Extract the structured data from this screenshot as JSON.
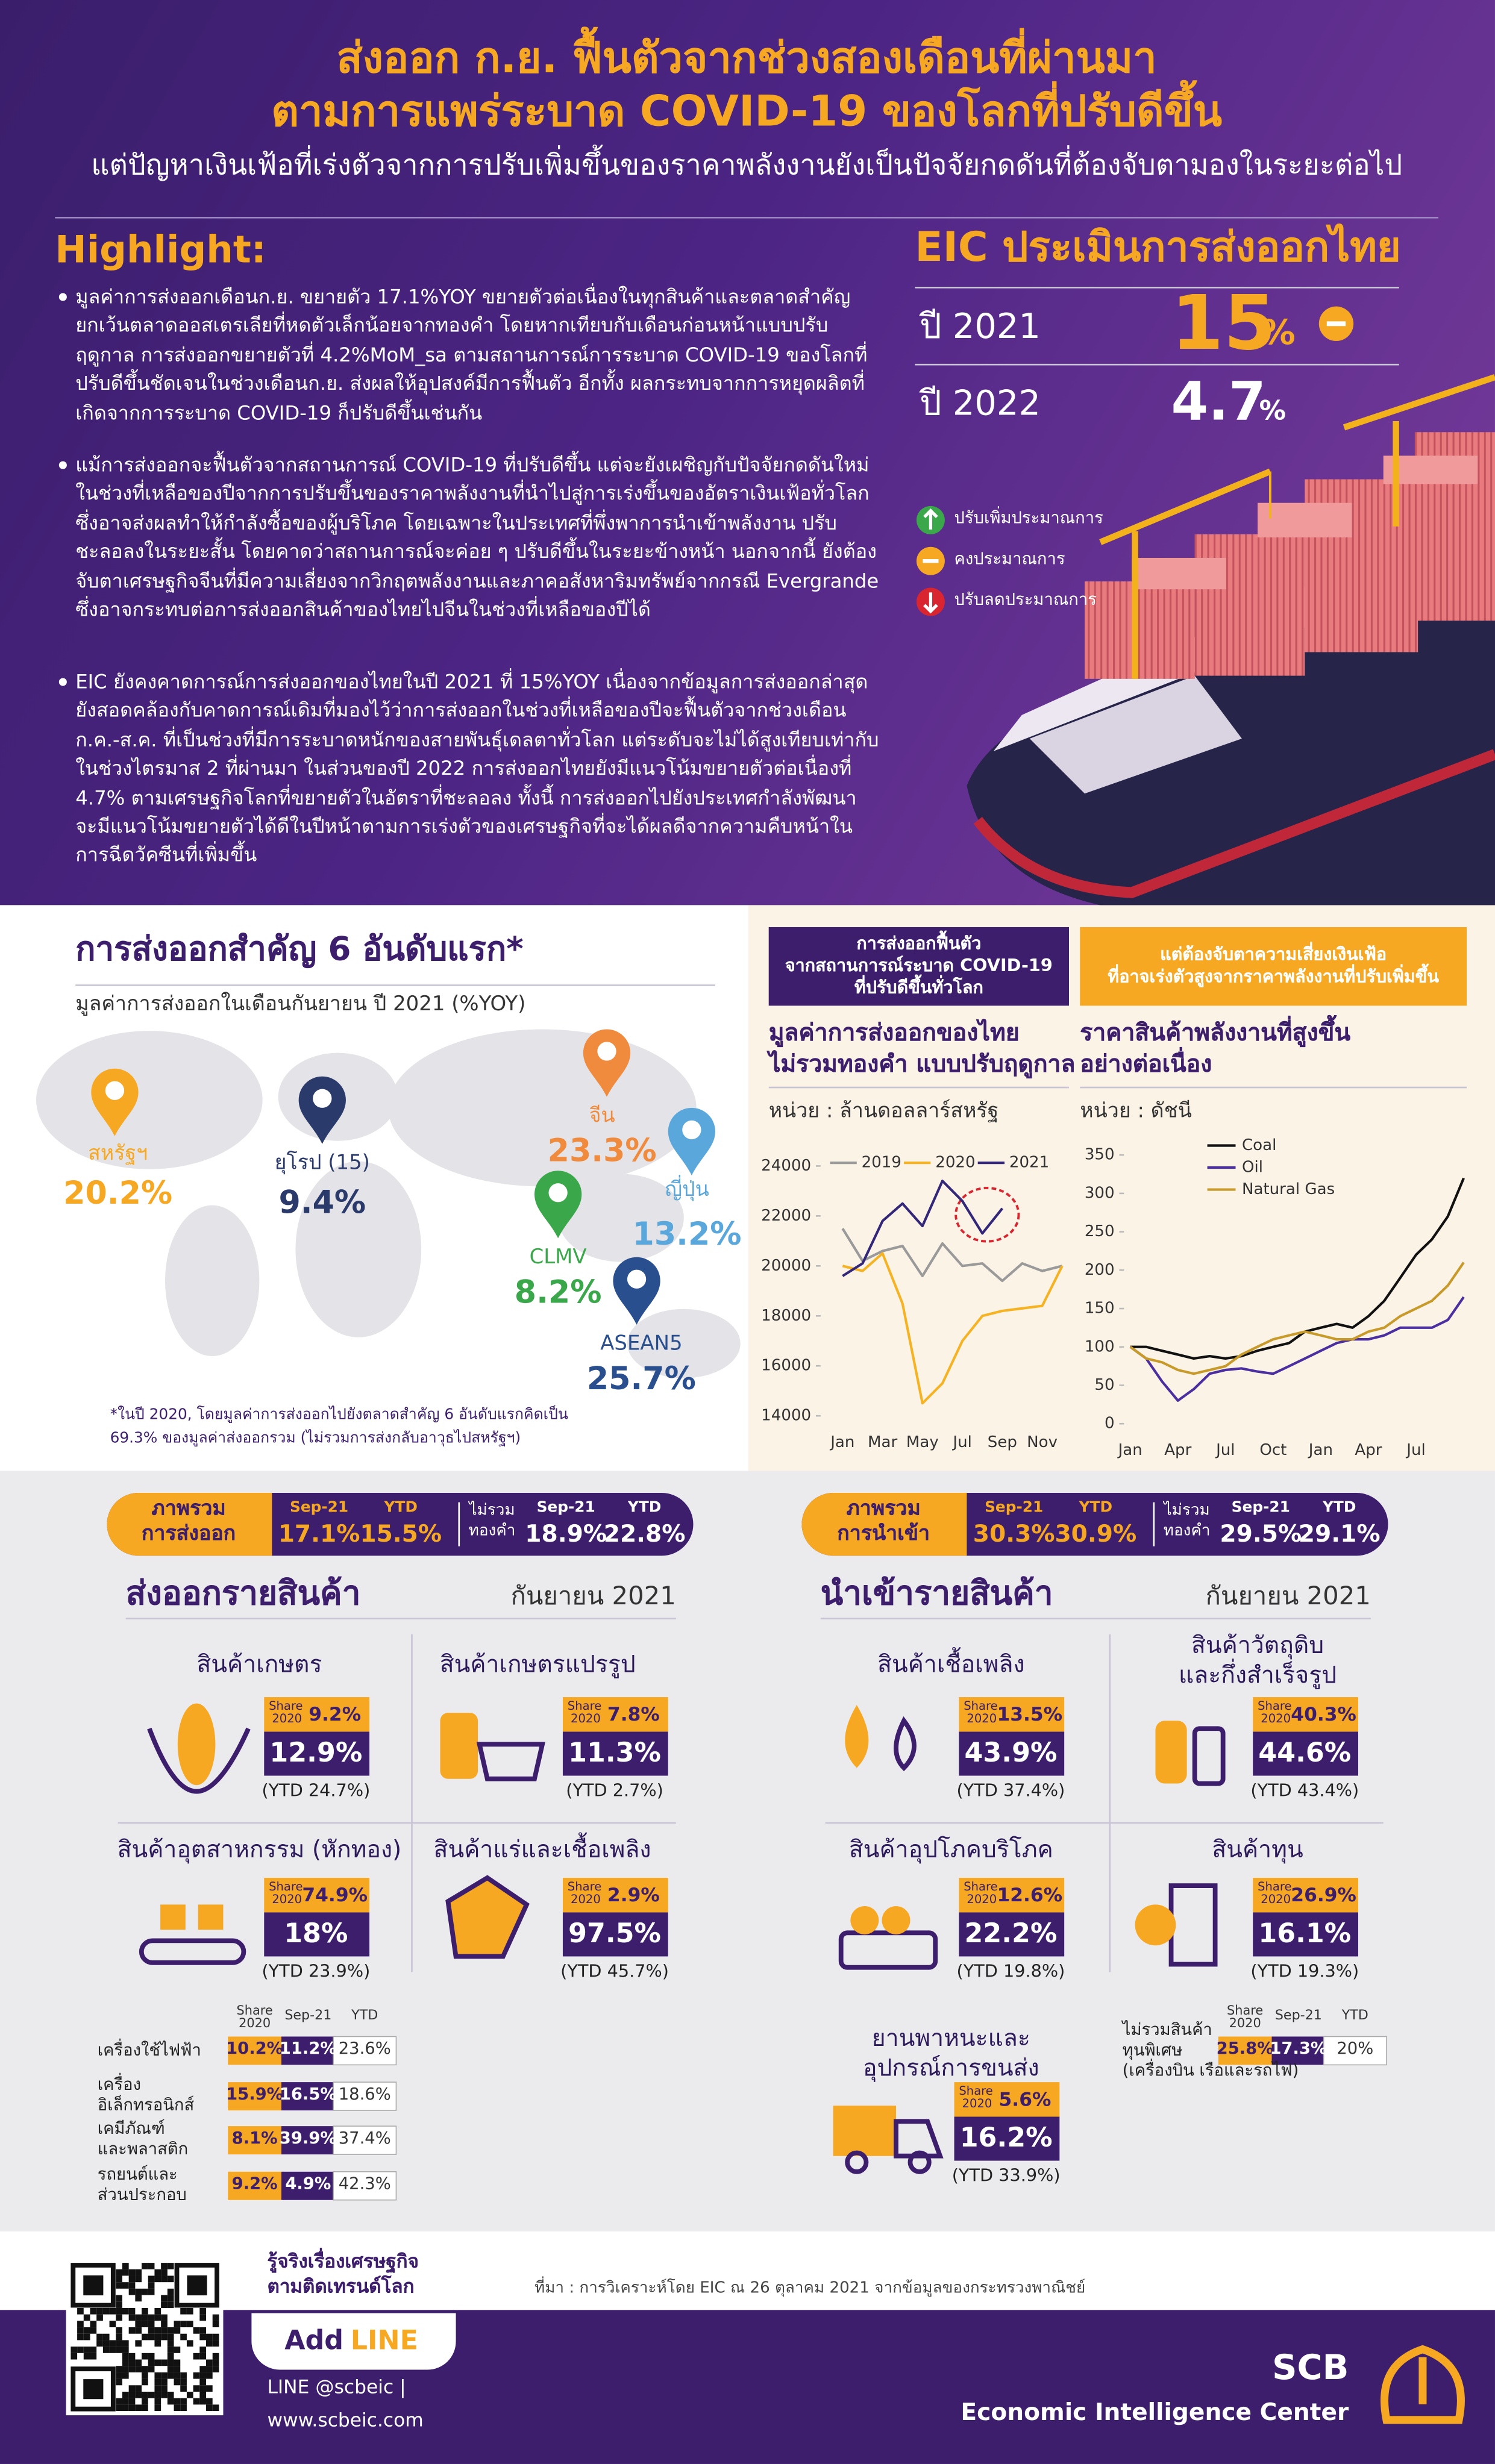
{
  "header": {
    "title_lines": [
      "ส่งออก ก.ย. ฟื้นตัวจากช่วงสองเดือนที่ผ่านมา",
      "ตามการแพร่ระบาด COVID-19 ของโลกที่ปรับดีขึ้น"
    ],
    "subtitle": "แต่ปัญหาเงินเฟ้อที่เร่งตัวจากการปรับเพิ่มขึ้นของราคาพลังงานยังเป็นปัจจัยกดดันที่ต้องจับตามองในระยะต่อไป"
  },
  "highlight": {
    "heading": "Highlight:",
    "bullets": [
      "มูลค่าการส่งออกเดือนก.ย. ขยายตัว 17.1%YOY ขยายตัวต่อเนื่องในทุกสินค้าและตลาดสำคัญ ยกเว้นตลาดออสเตรเลียที่หดตัวเล็กน้อยจากทองคำ โดยหากเทียบกับเดือนก่อนหน้าแบบปรับฤดูกาล การส่งออกขยายตัวที่ 4.2%MoM_sa ตามสถานการณ์การระบาด COVID-19 ของโลกที่ปรับดีขึ้นชัดเจนในช่วงเดือนก.ย. ส่งผลให้อุปสงค์มีการฟื้นตัว อีกทั้ง ผลกระทบจากการหยุดผลิตที่เกิดจากการระบาด COVID-19 ก็ปรับดีขึ้นเช่นกัน",
      "แม้การส่งออกจะฟื้นตัวจากสถานการณ์ COVID-19 ที่ปรับดีขึ้น แต่จะยังเผชิญกับปัจจัยกดดันใหม่ในช่วงที่เหลือของปีจากการปรับขึ้นของราคาพลังงานที่นำไปสู่การเร่งขึ้นของอัตราเงินเฟ้อทั่วโลก ซึ่งอาจส่งผลทำให้กำลังซื้อของผู้บริโภค โดยเฉพาะในประเทศที่พึ่งพาการนำเข้าพลังงาน ปรับชะลอลงในระยะสั้น โดยคาดว่าสถานการณ์จะค่อย ๆ ปรับดีขึ้นในระยะข้างหน้า นอกจากนี้ ยังต้องจับตาเศรษฐกิจจีนที่มีความเสี่ยงจากวิกฤตพลังงานและภาคอสังหาริมทรัพย์จากกรณี Evergrande ซึ่งอาจกระทบต่อการส่งออกสินค้าของไทยไปจีนในช่วงที่เหลือของปีได้",
      "EIC ยังคงคาดการณ์การส่งออกของไทยในปี 2021 ที่ 15%YOY เนื่องจากข้อมูลการส่งออกล่าสุดยังสอดคล้องกับคาดการณ์เดิมที่มองไว้ว่าการส่งออกในช่วงที่เหลือของปีจะฟื้นตัวจากช่วงเดือน ก.ค.-ส.ค. ที่เป็นช่วงที่มีการระบาดหนักของสายพันธุ์เดลตาทั่วโลก แต่ระดับจะไม่ได้สูงเทียบเท่ากับในช่วงไตรมาส 2 ที่ผ่านมา ในส่วนของปี 2022 การส่งออกไทยยังมีแนวโน้มขยายตัวต่อเนื่องที่ 4.7% ตามเศรษฐกิจโลกที่ขยายตัวในอัตราที่ชะลอลง ทั้งนี้ การส่งออกไปยังประเทศกำลังพัฒนา จะมีแนวโน้มขยายตัวได้ดีในปีหน้าตามการเร่งตัวของเศรษฐกิจที่จะได้ผลดีจากความคืบหน้าในการฉีดวัคซีนที่เพิ่มขึ้น"
    ]
  },
  "forecast": {
    "heading": "EIC ประเมินการส่งออกไทย",
    "rows": [
      {
        "year": "ปี 2021",
        "value": "15",
        "unit": "%"
      },
      {
        "year": "ปี 2022",
        "value": "4.7",
        "unit": "%"
      }
    ],
    "legend": [
      "ปรับเพิ่มประมาณการ",
      "คงประมาณการ",
      "ปรับลดประมาณการ"
    ]
  },
  "markets": {
    "title": "การส่งออกสำคัญ 6 อันดับแรก*",
    "subtitle": "มูลค่าการส่งออกในเดือนกันยายน ปี 2021 (%YOY)",
    "items": [
      {
        "name": "สหรัฐฯ",
        "value": "20.2%",
        "color": "#f7a823"
      },
      {
        "name": "ยุโรป (15)",
        "value": "9.4%",
        "color": "#2a3a6b"
      },
      {
        "name": "จีน",
        "value": "23.3%",
        "color": "#f08a3c"
      },
      {
        "name": "ญี่ปุ่น",
        "value": "13.2%",
        "color": "#5aa7dc"
      },
      {
        "name": "CLMV",
        "value": "8.2%",
        "color": "#3aa84a"
      },
      {
        "name": "ASEAN5",
        "value": "25.7%",
        "color": "#2a4f8f"
      }
    ],
    "footnote": [
      "*ในปี 2020, โดยมูลค่าการส่งออกไปยังตลาดสำคัญ 6 อันดับแรกคิดเป็น",
      "69.3% ของมูลค่าส่งออกรวม (ไม่รวมการส่งกลับอาวุธไปสหรัฐฯ)"
    ]
  },
  "panels": [
    {
      "banner": [
        "การส่งออกฟื้นตัว",
        "จากสถานการณ์ระบาด COVID-19",
        "ที่ปรับดีขึ้นทั่วโลก"
      ],
      "title": [
        "มูลค่าการส่งออกของไทย",
        "ไม่รวมทองคำ แบบปรับฤดูกาล"
      ],
      "unit": "หน่วย : ล้านดอลลาร์สหรัฐ"
    },
    {
      "banner": [
        "แต่ต้องจับตาความเสี่ยงเงินเฟ้อ",
        "ที่อาจเร่งตัวสูงจากราคาพลังงานที่ปรับเพิ่มขึ้น"
      ],
      "title": [
        "ราคาสินค้าพลังงานที่สูงขึ้น",
        "อย่างต่อเนื่อง"
      ],
      "unit": "หน่วย : ดัชนี"
    }
  ],
  "chart_data": [
    {
      "type": "line",
      "categories": [
        "Jan",
        null,
        "Mar",
        null,
        "May",
        null,
        "Jul",
        null,
        "Sep",
        null,
        "Nov",
        null
      ],
      "series": [
        {
          "name": "2019",
          "color": "#9a9a9a",
          "values": [
            21500,
            20200,
            20600,
            20800,
            19600,
            20900,
            20000,
            20100,
            19400,
            20100,
            19800,
            20000
          ]
        },
        {
          "name": "2020",
          "color": "#f5b324",
          "values": [
            20000,
            19800,
            20500,
            18500,
            14500,
            15300,
            17000,
            18000,
            18200,
            18300,
            18400,
            20000
          ]
        },
        {
          "name": "2021",
          "color": "#33277a",
          "values": [
            19600,
            20100,
            21800,
            22500,
            21600,
            23400,
            22600,
            21300,
            22300,
            null,
            null,
            null
          ]
        }
      ],
      "ylim": [
        14000,
        24000
      ],
      "yticks": [
        14000,
        16000,
        18000,
        20000,
        22000,
        24000
      ],
      "legend": "top",
      "grid": false
    },
    {
      "type": "line",
      "categories": [
        "Jan",
        null,
        null,
        "Apr",
        null,
        null,
        "Jul",
        null,
        null,
        "Oct",
        null,
        null,
        "Jan",
        null,
        null,
        "Apr",
        null,
        null,
        "Jul",
        null,
        null,
        null
      ],
      "series": [
        {
          "name": "Coal",
          "color": "#111111",
          "values": [
            100,
            100,
            95,
            90,
            85,
            88,
            85,
            88,
            95,
            100,
            105,
            120,
            125,
            130,
            125,
            140,
            160,
            190,
            220,
            240,
            270,
            320
          ]
        },
        {
          "name": "Oil",
          "color": "#4b2fa0",
          "values": [
            100,
            85,
            55,
            30,
            45,
            65,
            70,
            72,
            68,
            65,
            75,
            85,
            95,
            105,
            110,
            110,
            115,
            125,
            125,
            125,
            135,
            165
          ]
        },
        {
          "name": "Natural Gas",
          "color": "#c79a2a",
          "values": [
            100,
            85,
            80,
            70,
            65,
            70,
            75,
            90,
            100,
            110,
            115,
            120,
            115,
            110,
            110,
            120,
            125,
            140,
            150,
            160,
            180,
            210
          ]
        }
      ],
      "ylim": [
        0,
        350
      ],
      "yticks": [
        0,
        50,
        100,
        150,
        200,
        250,
        300,
        350
      ],
      "legend": "upper left",
      "grid": false
    }
  ],
  "export_summary": {
    "label": [
      "ภาพรวม",
      "การส่งออก"
    ],
    "total": {
      "sep_label": "Sep-21",
      "sep": "17.1%",
      "ytd_label": "YTD",
      "ytd": "15.5%"
    },
    "ex_gold_label": [
      "ไม่รวม",
      "ทองคำ"
    ],
    "ex_gold": {
      "sep_label": "Sep-21",
      "sep": "18.9%",
      "ytd_label": "YTD",
      "ytd": "22.8%"
    }
  },
  "import_summary": {
    "label": [
      "ภาพรวม",
      "การนำเข้า"
    ],
    "total": {
      "sep_label": "Sep-21",
      "sep": "30.3%",
      "ytd_label": "YTD",
      "ytd": "30.9%"
    },
    "ex_gold_label": [
      "ไม่รวม",
      "ทองคำ"
    ],
    "ex_gold": {
      "sep_label": "Sep-21",
      "sep": "29.5%",
      "ytd_label": "YTD",
      "ytd": "29.1%"
    }
  },
  "exports": {
    "heading": "ส่งออกรายสินค้า",
    "month": "กันยายน 2021",
    "share_label": [
      "Share",
      "2020"
    ],
    "items": [
      {
        "name": [
          "สินค้าเกษตร"
        ],
        "share": "9.2%",
        "sep": "12.9%",
        "ytd": "(YTD 24.7%)"
      },
      {
        "name": [
          "สินค้าเกษตรแปรรูป"
        ],
        "share": "7.8%",
        "sep": "11.3%",
        "ytd": "(YTD 2.7%)"
      },
      {
        "name": [
          "สินค้าอุตสาหกรรม (หักทอง)"
        ],
        "share": "74.9%",
        "sep": "18%",
        "ytd": "(YTD 23.9%)"
      },
      {
        "name": [
          "สินค้าแร่และเชื้อเพลิง"
        ],
        "share": "2.9%",
        "sep": "97.5%",
        "ytd": "(YTD 45.7%)"
      }
    ],
    "table": {
      "columns": {
        "share": [
          "Share",
          "2020"
        ],
        "sep": "Sep-21",
        "ytd": "YTD"
      },
      "rows": [
        {
          "name": [
            "เครื่องใช้ไฟฟ้า"
          ],
          "share": "10.2%",
          "sep": "11.2%",
          "ytd": "23.6%"
        },
        {
          "name": [
            "เครื่อง",
            "อิเล็กทรอนิกส์"
          ],
          "share": "15.9%",
          "sep": "16.5%",
          "ytd": "18.6%"
        },
        {
          "name": [
            "เคมีภัณฑ์",
            "และพลาสติก"
          ],
          "share": "8.1%",
          "sep": "39.9%",
          "ytd": "37.4%"
        },
        {
          "name": [
            "รถยนต์และ",
            "ส่วนประกอบ"
          ],
          "share": "9.2%",
          "sep": "4.9%",
          "ytd": "42.3%"
        }
      ]
    }
  },
  "imports": {
    "heading": "นำเข้ารายสินค้า",
    "month": "กันยายน 2021",
    "share_label": [
      "Share",
      "2020"
    ],
    "items": [
      {
        "name": [
          "สินค้าเชื้อเพลิง"
        ],
        "share": "13.5%",
        "sep": "43.9%",
        "ytd": "(YTD 37.4%)"
      },
      {
        "name": [
          "สินค้าวัตถุดิบ",
          "และกึ่งสำเร็จรูป"
        ],
        "share": "40.3%",
        "sep": "44.6%",
        "ytd": "(YTD 43.4%)"
      },
      {
        "name": [
          "สินค้าอุปโภคบริโภค"
        ],
        "share": "12.6%",
        "sep": "22.2%",
        "ytd": "(YTD 19.8%)"
      },
      {
        "name": [
          "สินค้าทุน"
        ],
        "share": "26.9%",
        "sep": "16.1%",
        "ytd": "(YTD 19.3%)"
      },
      {
        "name": [
          "ยานพาหนะและ",
          "อุปกรณ์การขนส่ง"
        ],
        "share": "5.6%",
        "sep": "16.2%",
        "ytd": "(YTD 33.9%)"
      }
    ],
    "table": {
      "columns": {
        "share": [
          "Share",
          "2020"
        ],
        "sep": "Sep-21",
        "ytd": "YTD"
      },
      "rows": [
        {
          "name": [
            "ไม่รวมสินค้า",
            "ทุนพิเศษ",
            "(เครื่องบิน เรือและรถไฟ)"
          ],
          "share": "25.8%",
          "sep": "17.3%",
          "ytd": "20%"
        }
      ]
    }
  },
  "footer": {
    "qr_caption": [
      "รู้จริงเรื่องเศรษฐกิจ",
      "ตามติดเทรนด์โลก"
    ],
    "add": "Add",
    "line": "LINE",
    "line_id": "LINE @scbeic |",
    "website": "www.scbeic.com",
    "source": "ที่มา : การวิเคราะห์โดย EIC ณ 26 ตุลาคม 2021 จากข้อมูลของกระทรวงพาณิชย์",
    "brand": "SCB",
    "brand_sub": "Economic Intelligence Center"
  }
}
